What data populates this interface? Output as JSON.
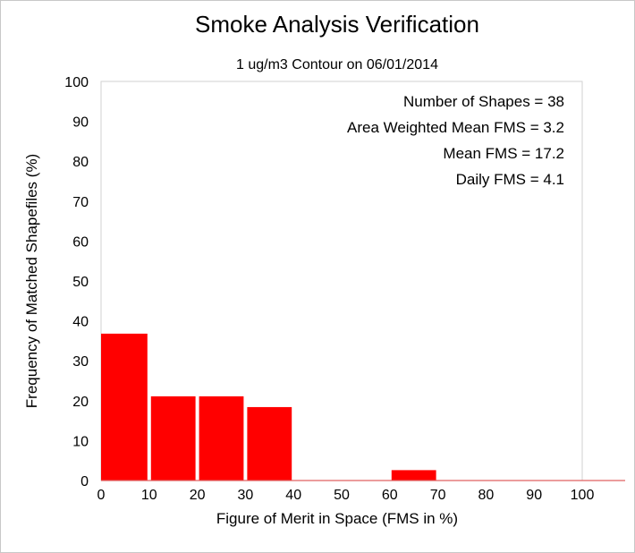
{
  "chart_data": {
    "type": "bar",
    "title": "Smoke Analysis Verification",
    "subtitle": "1 ug/m3 Contour on 06/01/2014",
    "xlabel": "Figure of Merit in Space (FMS in %)",
    "ylabel": "Frequency of Matched Shapefiles (%)",
    "xlim": [
      0,
      100
    ],
    "ylim": [
      0,
      100
    ],
    "xticks": [
      "0",
      "10",
      "20",
      "30",
      "40",
      "50",
      "60",
      "70",
      "80",
      "90",
      "100"
    ],
    "yticks": [
      "0",
      "10",
      "20",
      "30",
      "40",
      "50",
      "60",
      "70",
      "80",
      "90",
      "100"
    ],
    "bins": [
      {
        "from": 0,
        "to": 10,
        "value": 36.8
      },
      {
        "from": 10,
        "to": 20,
        "value": 21.1
      },
      {
        "from": 20,
        "to": 30,
        "value": 21.1
      },
      {
        "from": 30,
        "to": 40,
        "value": 18.4
      },
      {
        "from": 40,
        "to": 50,
        "value": 0
      },
      {
        "from": 50,
        "to": 60,
        "value": 0
      },
      {
        "from": 60,
        "to": 70,
        "value": 2.6
      },
      {
        "from": 70,
        "to": 80,
        "value": 0
      },
      {
        "from": 80,
        "to": 90,
        "value": 0
      },
      {
        "from": 90,
        "to": 100,
        "value": 0
      }
    ],
    "bar_color": "#ff0000",
    "grid": false,
    "annotations": [
      "Number of Shapes = 38",
      "Area Weighted Mean FMS = 3.2",
      "Mean FMS = 17.2",
      "Daily FMS = 4.1"
    ]
  }
}
